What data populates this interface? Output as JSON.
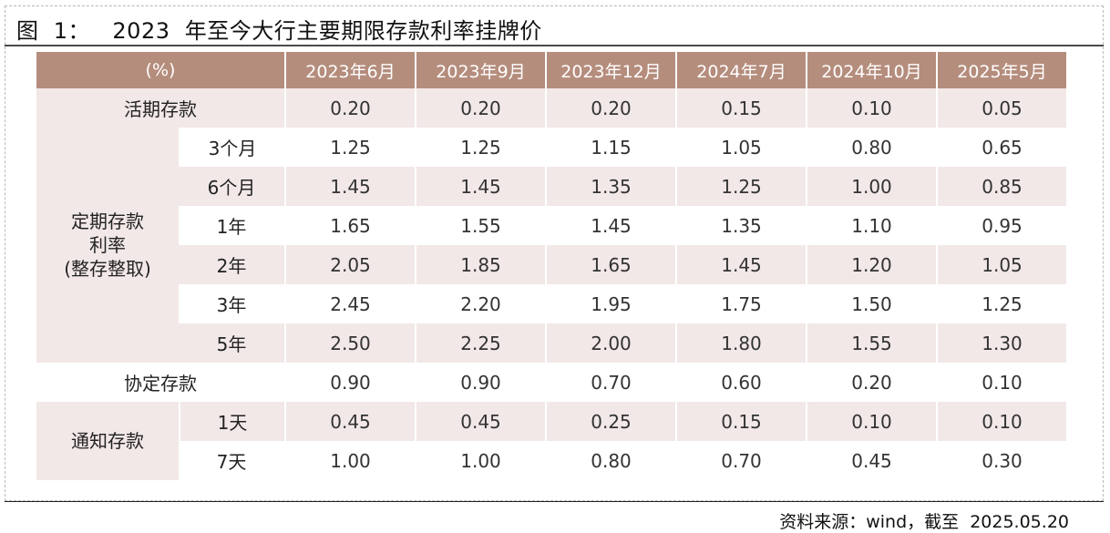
{
  "title": "图  1：   2023  年至今大行主要期限存款利率挂牌价",
  "source": "资料来源：wind，截至  2025.05.20",
  "table": {
    "corner_label": "(%)",
    "columns": [
      "2023年6月",
      "2023年9月",
      "2023年12月",
      "2024年7月",
      "2024年10月",
      "2025年5月"
    ],
    "huoqi": {
      "label": "活期存款",
      "values": [
        "0.20",
        "0.20",
        "0.20",
        "0.15",
        "0.10",
        "0.05"
      ]
    },
    "dingqi": {
      "label_lines": [
        "定期存款",
        "利率",
        "(整存整取)"
      ],
      "rows": [
        {
          "term": "3个月",
          "values": [
            "1.25",
            "1.25",
            "1.15",
            "1.05",
            "0.80",
            "0.65"
          ]
        },
        {
          "term": "6个月",
          "values": [
            "1.45",
            "1.45",
            "1.35",
            "1.25",
            "1.00",
            "0.85"
          ]
        },
        {
          "term": "1年",
          "values": [
            "1.65",
            "1.55",
            "1.45",
            "1.35",
            "1.10",
            "0.95"
          ]
        },
        {
          "term": "2年",
          "values": [
            "2.05",
            "1.85",
            "1.65",
            "1.45",
            "1.20",
            "1.05"
          ]
        },
        {
          "term": "3年",
          "values": [
            "2.45",
            "2.20",
            "1.95",
            "1.75",
            "1.50",
            "1.25"
          ]
        },
        {
          "term": "5年",
          "values": [
            "2.50",
            "2.25",
            "2.00",
            "1.80",
            "1.55",
            "1.30"
          ]
        }
      ]
    },
    "xieding": {
      "label": "协定存款",
      "values": [
        "0.90",
        "0.90",
        "0.70",
        "0.60",
        "0.20",
        "0.10"
      ]
    },
    "tongzhi": {
      "label": "通知存款",
      "rows": [
        {
          "term": "1天",
          "values": [
            "0.45",
            "0.45",
            "0.25",
            "0.15",
            "0.10",
            "0.10"
          ]
        },
        {
          "term": "7天",
          "values": [
            "1.00",
            "1.00",
            "0.80",
            "0.70",
            "0.45",
            "0.30"
          ]
        }
      ]
    }
  },
  "colors": {
    "header_bg": "#b58d7d",
    "row_shade": "#f1e8e7",
    "header_text": "#ffffff"
  }
}
